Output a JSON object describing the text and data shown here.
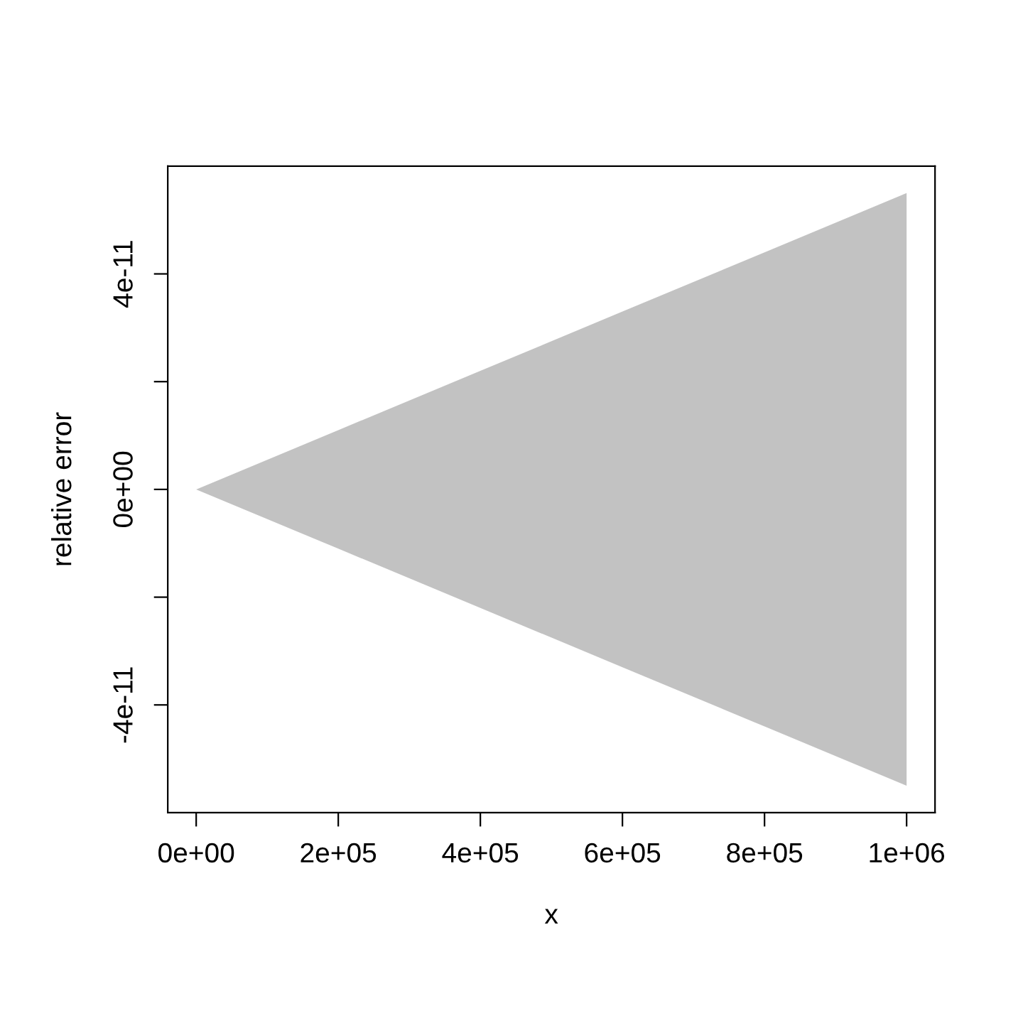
{
  "chart_data": {
    "type": "area",
    "xlabel": "x",
    "ylabel": "relative error",
    "x": [
      0,
      200000,
      400000,
      600000,
      800000,
      1000000
    ],
    "series": [
      {
        "color": "#9a9a9a",
        "values": [
          0,
          1.1e-11,
          2.2e-11,
          3.3e-11,
          4.4e-11,
          5.5e-11
        ]
      },
      {
        "color": "#9a9a9a",
        "values": [
          0,
          -1.1e-11,
          -2.2e-11,
          -3.3e-11,
          -4.4e-11,
          -5.5e-11
        ]
      }
    ],
    "xlim": [
      -40000,
      1040000
    ],
    "ylim": [
      -6e-11,
      6e-11
    ],
    "xticks": [
      {
        "value": 0,
        "label": "0e+00"
      },
      {
        "value": 200000,
        "label": "2e+05"
      },
      {
        "value": 400000,
        "label": "4e+05"
      },
      {
        "value": 600000,
        "label": "6e+05"
      },
      {
        "value": 800000,
        "label": "8e+05"
      },
      {
        "value": 1000000,
        "label": "1e+06"
      }
    ],
    "yticks": [
      {
        "value": -4e-11,
        "label": "-4e-11"
      },
      {
        "value": -2e-11,
        "label": null
      },
      {
        "value": 0,
        "label": "0e+00"
      },
      {
        "value": 2e-11,
        "label": null
      },
      {
        "value": 4e-11,
        "label": "4e-11"
      }
    ],
    "grid": false,
    "legend": false
  }
}
